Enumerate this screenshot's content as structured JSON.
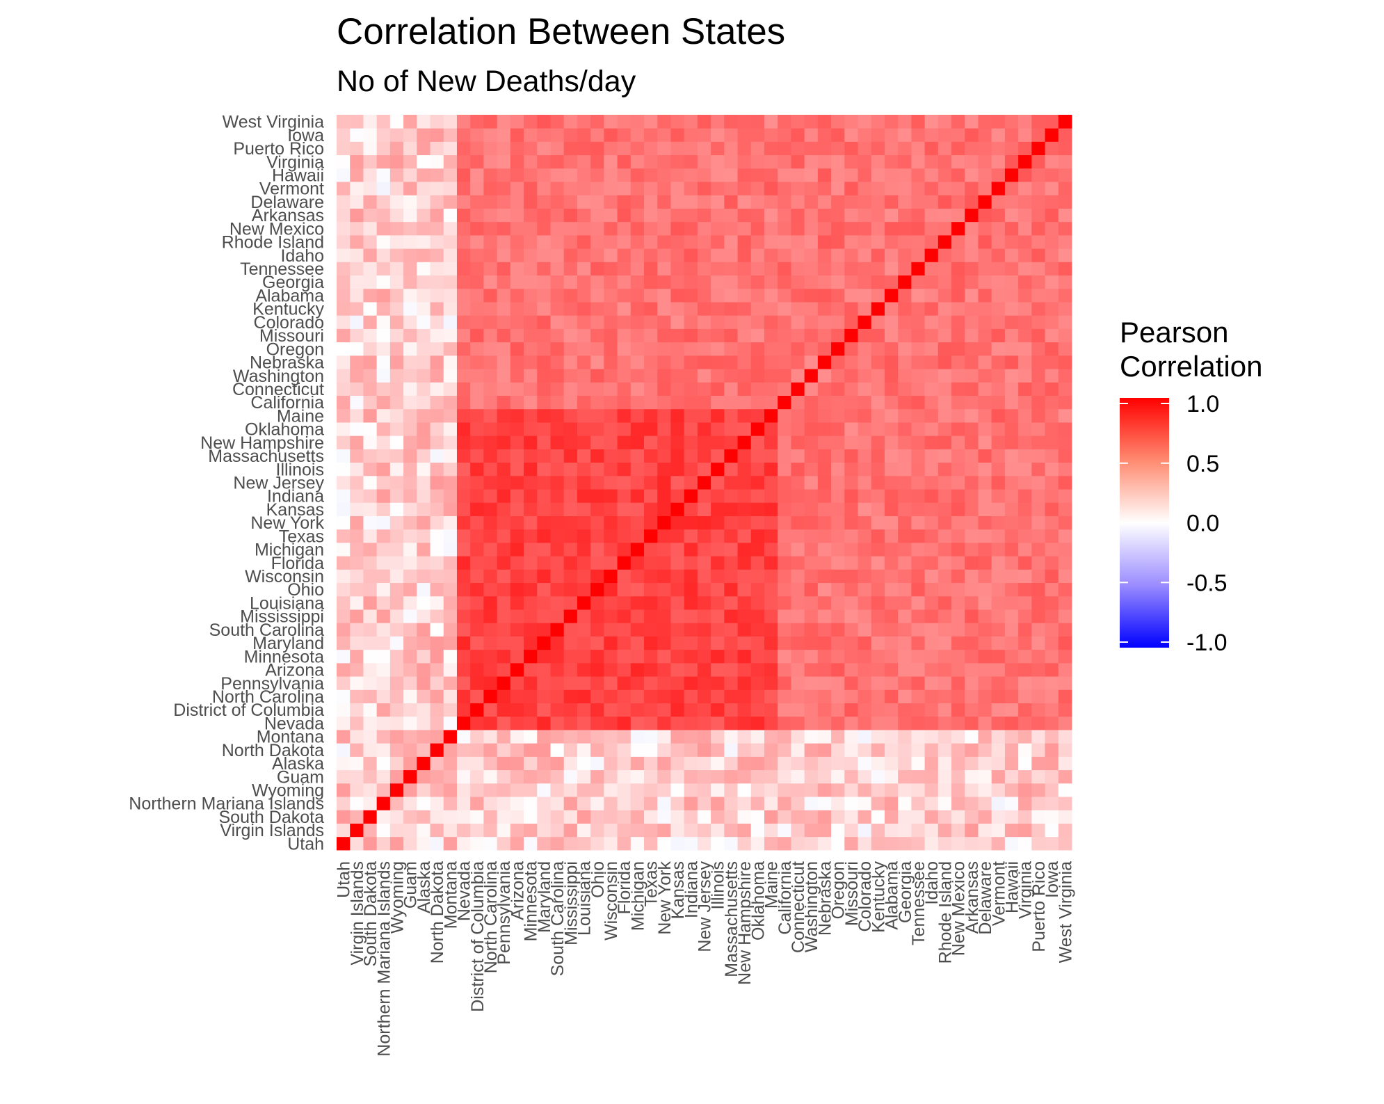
{
  "chart_data": {
    "type": "heatmap",
    "title": "Correlation Between States",
    "subtitle": "No of New Deaths/day",
    "states": [
      "Utah",
      "Virgin Islands",
      "South Dakota",
      "Northern Mariana Islands",
      "Wyoming",
      "Guam",
      "Alaska",
      "North Dakota",
      "Montana",
      "Nevada",
      "District of Columbia",
      "North Carolina",
      "Pennsylvania",
      "Arizona",
      "Minnesota",
      "Maryland",
      "South Carolina",
      "Mississippi",
      "Louisiana",
      "Ohio",
      "Wisconsin",
      "Florida",
      "Michigan",
      "Texas",
      "New York",
      "Kansas",
      "Indiana",
      "New Jersey",
      "Illinois",
      "Massachusetts",
      "New Hampshire",
      "Oklahoma",
      "Maine",
      "California",
      "Connecticut",
      "Washington",
      "Nebraska",
      "Oregon",
      "Missouri",
      "Colorado",
      "Kentucky",
      "Alabama",
      "Georgia",
      "Tennessee",
      "Idaho",
      "Rhode Island",
      "New Mexico",
      "Arkansas",
      "Delaware",
      "Vermont",
      "Hawaii",
      "Virginia",
      "Puerto Rico",
      "Iowa",
      "West Virginia"
    ],
    "group_means": {
      "low": 0.18,
      "mid": 0.55,
      "high": 0.74
    },
    "low_group_end_index": 8,
    "mid_group_start_index": 33,
    "diagonal": 1.0,
    "color_scale": {
      "low": "#0000ff",
      "mid": "#ffffff",
      "high": "#ff0000",
      "limits": [
        -1,
        1
      ]
    },
    "legend": {
      "title_line1": "Pearson",
      "title_line2": "Correlation",
      "ticks": [
        "1.0",
        "0.5",
        "0.0",
        "-0.5",
        "-1.0"
      ],
      "position": "right"
    }
  }
}
